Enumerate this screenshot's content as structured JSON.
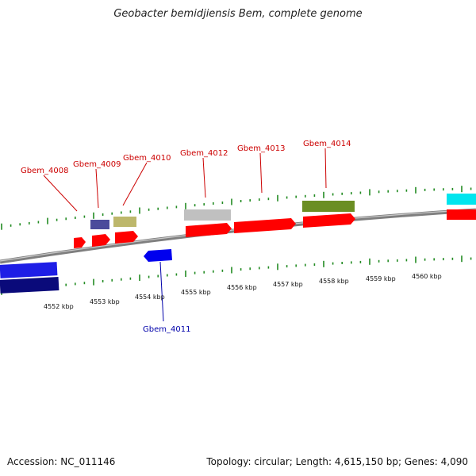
{
  "title": "Geobacter bemidjiensis Bem, complete genome",
  "footer": {
    "accession": "Accession: NC_011146",
    "summary": "Topology: circular; Length: 4,615,150 bp; Genes: 4,090"
  },
  "scale": {
    "tick_labels": [
      "4552 kbp",
      "4553 kbp",
      "4554 kbp",
      "4555 kbp",
      "4556 kbp",
      "4557 kbp",
      "4558 kbp",
      "4559 kbp",
      "4560 kbp"
    ]
  },
  "genes": [
    {
      "label": "Gbem_4008",
      "strand": "+"
    },
    {
      "label": "Gbem_4009",
      "strand": "+"
    },
    {
      "label": "Gbem_4010",
      "strand": "+"
    },
    {
      "label": "Gbem_4011",
      "strand": "-"
    },
    {
      "label": "Gbem_4012",
      "strand": "+"
    },
    {
      "label": "Gbem_4013",
      "strand": "+"
    },
    {
      "label": "Gbem_4014",
      "strand": "+"
    }
  ],
  "colors": {
    "cds": "#ff0000",
    "cds_minus": "#0000ee",
    "forward_label": "#cc0000",
    "reverse_label": "#0000aa",
    "tick": "#228b22",
    "backbone": "#8c8c8c",
    "cog_a": "#4b4b9b",
    "cog_b": "#bdb76b",
    "cog_c": "#c0c0c0",
    "cog_d": "#6b8e23",
    "cog_e": "#00e5ee",
    "cog_f": "#1e1ee6",
    "cog_g": "#0a0a7a"
  }
}
